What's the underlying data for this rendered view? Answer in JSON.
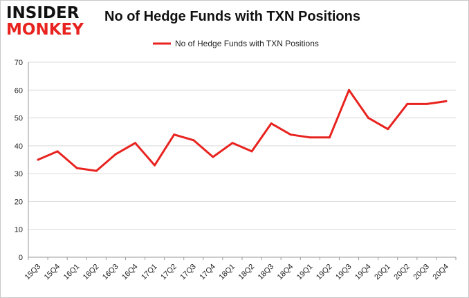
{
  "brand": {
    "logo_top": "INSIDER",
    "logo_bottom": "MONKEY"
  },
  "chart_data": {
    "type": "line",
    "title": "No of Hedge Funds with TXN Positions",
    "xlabel": "",
    "ylabel": "",
    "categories": [
      "15Q3",
      "15Q4",
      "16Q1",
      "16Q2",
      "16Q3",
      "16Q4",
      "17Q1",
      "17Q2",
      "17Q3",
      "17Q4",
      "18Q1",
      "18Q2",
      "18Q3",
      "18Q4",
      "19Q1",
      "19Q2",
      "19Q3",
      "19Q4",
      "20Q1",
      "20Q2",
      "20Q3",
      "20Q4"
    ],
    "series": [
      {
        "name": "No of Hedge Funds with TXN Positions",
        "color": "#e8231f",
        "values": [
          35,
          38,
          32,
          31,
          37,
          41,
          33,
          44,
          42,
          36,
          41,
          38,
          48,
          44,
          43,
          43,
          60,
          50,
          46,
          55,
          55,
          56
        ]
      }
    ],
    "ylim": [
      0,
      70
    ],
    "yticks": [
      0,
      10,
      20,
      30,
      40,
      50,
      60,
      70
    ],
    "grid": true,
    "legend_position": "top-center"
  }
}
